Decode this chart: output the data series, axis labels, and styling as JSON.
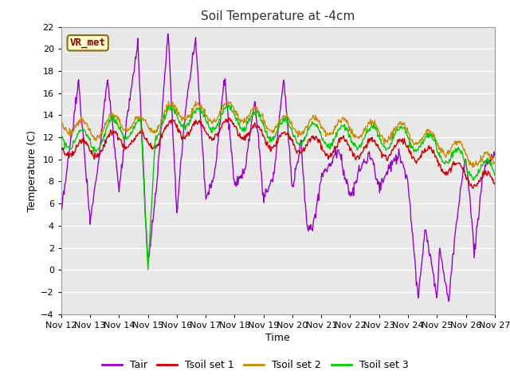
{
  "title": "Soil Temperature at -4cm",
  "xlabel": "Time",
  "ylabel": "Temperature (C)",
  "ylim": [
    -4,
    22
  ],
  "fig_bg_color": "#ffffff",
  "plot_bg_color": "#e8e8e8",
  "annotation_text": "VR_met",
  "annotation_color": "#8B0000",
  "annotation_bg": "#ffffcc",
  "annotation_edge": "#8B6914",
  "grid_color": "#ffffff",
  "colors": {
    "Tair": "#9900cc",
    "Tsoil1": "#cc0000",
    "Tsoil2": "#cc8800",
    "Tsoil3": "#00cc00"
  },
  "legend_labels": [
    "Tair",
    "Tsoil set 1",
    "Tsoil set 2",
    "Tsoil set 3"
  ],
  "xtick_labels": [
    "Nov 12",
    "Nov 13",
    "Nov 14",
    "Nov 15",
    "Nov 16",
    "Nov 17",
    "Nov 18",
    "Nov 19",
    "Nov 20",
    "Nov 21",
    "Nov 22",
    "Nov 23",
    "Nov 24",
    "Nov 25",
    "Nov 26",
    "Nov 27"
  ]
}
